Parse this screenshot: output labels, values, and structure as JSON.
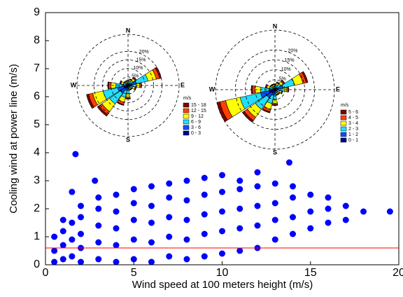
{
  "chart_data": [
    {
      "type": "scatter",
      "xlabel": "Wind speed at 100 meters height (m/s)",
      "ylabel": "Cooling wind at power line (m/s)",
      "xlim": [
        0,
        20
      ],
      "xticks": [
        0,
        5,
        10,
        15,
        20
      ],
      "ylim": [
        0,
        9
      ],
      "yticks": [
        0,
        1,
        2,
        3,
        4,
        5,
        6,
        7,
        8,
        9
      ],
      "color": "#0000ff",
      "reference_line": {
        "value": 0.6,
        "color": "#ff0000"
      },
      "x": [
        0.5,
        0.5,
        0.5,
        1,
        1,
        1,
        1,
        1.5,
        1.5,
        1.5,
        1.7,
        2,
        2,
        2,
        2,
        2,
        3,
        3,
        3,
        3,
        3,
        4,
        4,
        4,
        4,
        4,
        5,
        5,
        5,
        5,
        5,
        6,
        6,
        6,
        6,
        6,
        7,
        7,
        7,
        7,
        7,
        8,
        8,
        8,
        8,
        8,
        9,
        9,
        9,
        9,
        9,
        10,
        10,
        10,
        10,
        10,
        11,
        11,
        11,
        11,
        11,
        12,
        12,
        12,
        12,
        12,
        13,
        13,
        13,
        13,
        14,
        14,
        14,
        14,
        15,
        15,
        15,
        16,
        16,
        16,
        17,
        17,
        18,
        19.5,
        2.8,
        1.5,
        13.8
      ],
      "y": [
        0.1,
        0.5,
        1.0,
        0.2,
        0.7,
        1.2,
        1.6,
        0.3,
        0.9,
        1.5,
        3.95,
        0.1,
        0.6,
        1.1,
        1.7,
        2.1,
        0.2,
        0.8,
        1.4,
        2.0,
        2.4,
        0.1,
        0.7,
        1.3,
        1.9,
        2.5,
        0.2,
        0.9,
        1.6,
        2.2,
        2.7,
        0.1,
        0.8,
        1.5,
        2.1,
        2.8,
        0.3,
        1.0,
        1.7,
        2.4,
        2.9,
        0.2,
        0.9,
        1.6,
        2.3,
        3.0,
        0.3,
        1.1,
        1.8,
        2.5,
        3.1,
        0.4,
        1.2,
        1.9,
        2.6,
        3.2,
        0.5,
        1.3,
        2.0,
        2.7,
        3.0,
        0.6,
        1.4,
        2.1,
        2.8,
        3.3,
        0.9,
        1.6,
        2.2,
        2.9,
        1.1,
        1.7,
        2.4,
        2.8,
        1.3,
        1.9,
        2.5,
        1.5,
        2.0,
        2.4,
        1.6,
        2.1,
        1.9,
        1.9,
        3.0,
        2.6,
        3.65
      ]
    },
    {
      "type": "windrose",
      "direction_labels": [
        "N",
        "E",
        "S",
        "W"
      ],
      "rlim": [
        0,
        30
      ],
      "rticks": [
        {
          "value": 5,
          "label": "5%"
        },
        {
          "value": 10,
          "label": "10%"
        },
        {
          "value": 15,
          "label": "15%"
        },
        {
          "value": 20,
          "label": "20%"
        }
      ],
      "legend_title": "m/s",
      "series": [
        {
          "name": "0 - 3",
          "color": "#00008f",
          "values": [
            0.3,
            0.4,
            0.6,
            2,
            0.8,
            0.5,
            0.3,
            0.3,
            0.8,
            1.2,
            2.2,
            2.5,
            1.2,
            0.5,
            0.3,
            0.3
          ]
        },
        {
          "name": "3 - 6",
          "color": "#0050ff",
          "values": [
            0.45,
            0.6,
            0.9,
            3,
            1.2,
            0.75,
            0.45,
            0.45,
            1.2,
            1.8,
            3.3,
            3.75,
            1.8,
            0.75,
            0.45,
            0.45
          ]
        },
        {
          "name": "6 - 9",
          "color": "#20e0ff",
          "values": [
            1.05,
            1.4,
            2.1,
            7,
            2.8,
            1.75,
            1.05,
            1.05,
            2.8,
            4.2,
            7.7,
            8.75,
            4.2,
            1.75,
            1.05,
            1.05
          ]
        },
        {
          "name": "9 - 12",
          "color": "#ffff00",
          "values": [
            0.75,
            1,
            1.5,
            5,
            2,
            1.25,
            0.75,
            0.75,
            2,
            3,
            5.5,
            6.25,
            3,
            1.25,
            0.75,
            0.75
          ]
        },
        {
          "name": "12 - 15",
          "color": "#ff4000",
          "values": [
            0.3,
            0.4,
            0.6,
            2,
            0.8,
            0.5,
            0.3,
            0.3,
            0.8,
            1.2,
            2.2,
            2.5,
            1.2,
            0.5,
            0.3,
            0.3
          ]
        },
        {
          "name": "15 - 18",
          "color": "#800000",
          "values": [
            0.15,
            0.2,
            0.3,
            1,
            0.4,
            0.25,
            0.15,
            0.15,
            0.4,
            0.6,
            1.1,
            1.25,
            0.6,
            0.25,
            0.15,
            0.15
          ]
        }
      ]
    },
    {
      "type": "windrose",
      "direction_labels": [
        "N",
        "E",
        "S",
        "W"
      ],
      "rlim": [
        0,
        30
      ],
      "rticks": [
        {
          "value": 5,
          "label": "5%"
        },
        {
          "value": 10,
          "label": "10%"
        },
        {
          "value": 15,
          "label": "15%"
        },
        {
          "value": 20,
          "label": "20%"
        }
      ],
      "legend_title": "m/s",
      "series": [
        {
          "name": "0 - 1",
          "color": "#00008f",
          "values": [
            0.3,
            0.4,
            0.6,
            1.7,
            0.7,
            0.4,
            0.3,
            0.3,
            0.8,
            1.2,
            2,
            3,
            1.2,
            0.5,
            0.3,
            0.3
          ]
        },
        {
          "name": "1 - 2",
          "color": "#0050ff",
          "values": [
            0.45,
            0.6,
            0.9,
            2.55,
            1.05,
            0.6,
            0.45,
            0.45,
            1.2,
            1.8,
            3,
            4.5,
            1.8,
            0.75,
            0.45,
            0.45
          ]
        },
        {
          "name": "2 - 3",
          "color": "#20e0ff",
          "values": [
            1.05,
            1.4,
            2.1,
            5.95,
            2.45,
            1.4,
            1.05,
            1.05,
            2.8,
            4.2,
            7,
            10.5,
            4.2,
            1.75,
            1.05,
            1.05
          ]
        },
        {
          "name": "3 - 4",
          "color": "#ffff00",
          "values": [
            0.75,
            1,
            1.5,
            4.25,
            1.75,
            1,
            0.75,
            0.75,
            2,
            3,
            5,
            7.5,
            3,
            1.25,
            0.75,
            0.75
          ]
        },
        {
          "name": "4 - 5",
          "color": "#ff4000",
          "values": [
            0.3,
            0.4,
            0.6,
            1.7,
            0.7,
            0.4,
            0.3,
            0.3,
            0.8,
            1.2,
            2,
            3,
            1.2,
            0.5,
            0.3,
            0.3
          ]
        },
        {
          "name": "5 - 6",
          "color": "#800000",
          "values": [
            0.15,
            0.2,
            0.3,
            0.85,
            0.35,
            0.2,
            0.15,
            0.15,
            0.4,
            0.6,
            1,
            1.5,
            0.6,
            0.25,
            0.15,
            0.15
          ]
        }
      ]
    }
  ]
}
